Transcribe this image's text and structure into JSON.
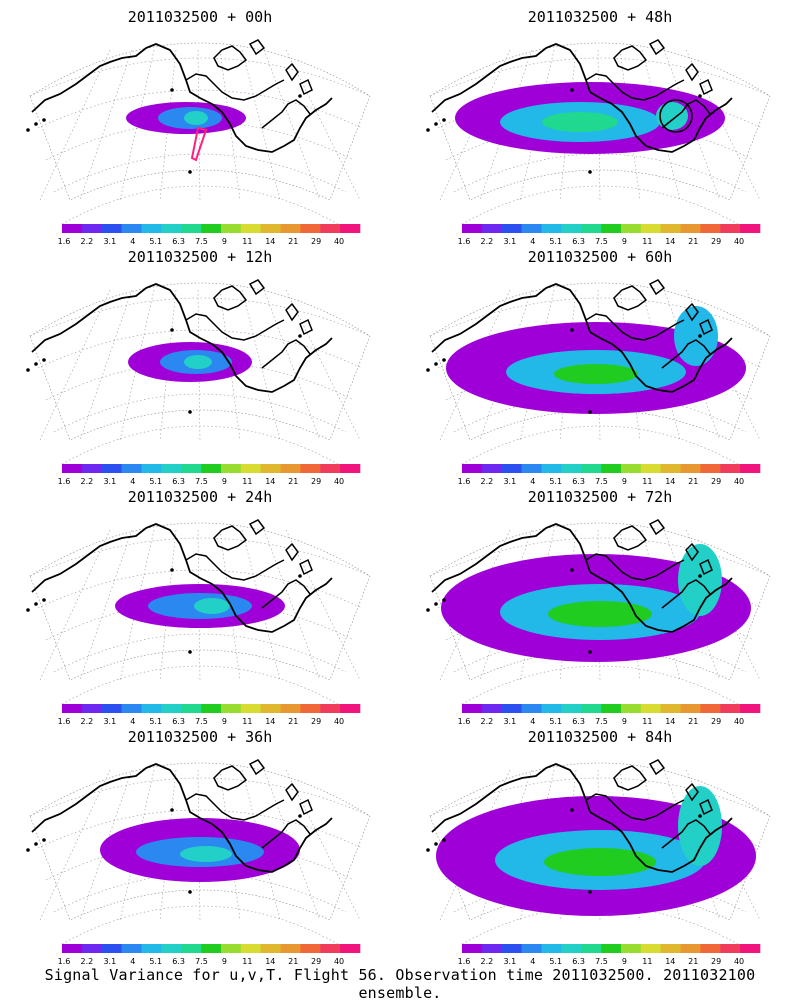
{
  "figure": {
    "caption": "Signal Variance for u,v,T. Flight 56. Observation time 2011032500. 2011032100 ensemble.",
    "colorbar": {
      "levels": [
        "1.6",
        "2.2",
        "3.1",
        "4",
        "5.1",
        "6.3",
        "7.5",
        "9",
        "11",
        "14",
        "21",
        "29",
        "40"
      ],
      "colors": [
        "#a000d8",
        "#6e28f0",
        "#2c50f0",
        "#2a88f0",
        "#22b8e8",
        "#22d0c8",
        "#20d890",
        "#20cc20",
        "#98dc30",
        "#d8dc30",
        "#e0b830",
        "#e89830",
        "#f06838",
        "#f03c5a",
        "#f0147c"
      ]
    },
    "panels": [
      {
        "title": "2011032500 + 00h",
        "forecast_hour": 0
      },
      {
        "title": "2011032500 + 48h",
        "forecast_hour": 48
      },
      {
        "title": "2011032500 + 12h",
        "forecast_hour": 12
      },
      {
        "title": "2011032500 + 60h",
        "forecast_hour": 60
      },
      {
        "title": "2011032500 + 24h",
        "forecast_hour": 24
      },
      {
        "title": "2011032500 + 72h",
        "forecast_hour": 72
      },
      {
        "title": "2011032500 + 36h",
        "forecast_hour": 36
      },
      {
        "title": "2011032500 + 84h",
        "forecast_hour": 84
      }
    ]
  }
}
